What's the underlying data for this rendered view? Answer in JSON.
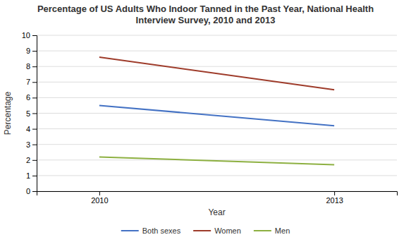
{
  "chart_data": {
    "type": "line",
    "title": "Percentage of US Adults Who Indoor Tanned in the Past Year, National Health\nInterview Survey, 2010 and 2013",
    "x_label": "Year",
    "y_label": "Percentage",
    "x": [
      2010,
      2013
    ],
    "series": [
      {
        "name": "Both sexes",
        "color": "#4472C4",
        "values": [
          5.5,
          4.2
        ]
      },
      {
        "name": "Women",
        "color": "#9E3B2A",
        "values": [
          8.6,
          6.5
        ]
      },
      {
        "name": "Men",
        "color": "#8DB041",
        "values": [
          2.2,
          1.7
        ]
      }
    ],
    "xlim": [
      2009.2,
      2013.8
    ],
    "xticks": [
      2010,
      2013
    ],
    "ylim": [
      0,
      10
    ],
    "yticks": [
      0,
      1,
      2,
      3,
      4,
      5,
      6,
      7,
      8,
      9,
      10
    ],
    "grid": true,
    "legend": "bottom"
  }
}
